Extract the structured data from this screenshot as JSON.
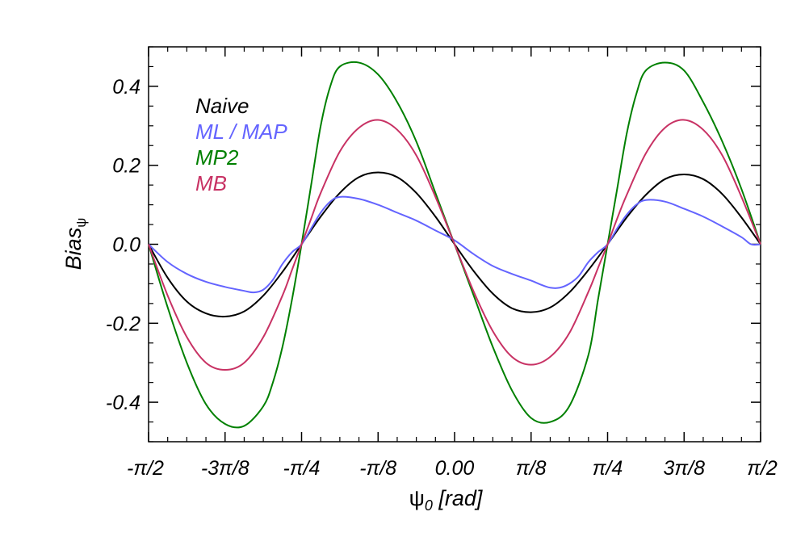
{
  "chart_data": {
    "type": "line",
    "title": "",
    "xlabel_symbol": "ψ",
    "xlabel_sub": "0",
    "xlabel_rest": " [rad]",
    "ylabel_main": "Bias",
    "ylabel_sub": "ψ",
    "xlim": [
      -1.5708,
      1.5708
    ],
    "ylim": [
      -0.5,
      0.5
    ],
    "x_ticks": [
      {
        "value": -1.5708,
        "label": "-π/2"
      },
      {
        "value": -1.1781,
        "label": "-3π/8"
      },
      {
        "value": -0.7854,
        "label": "-π/4"
      },
      {
        "value": -0.3927,
        "label": "-π/8"
      },
      {
        "value": 0.0,
        "label": "0.00"
      },
      {
        "value": 0.3927,
        "label": "π/8"
      },
      {
        "value": 0.7854,
        "label": "π/4"
      },
      {
        "value": 1.1781,
        "label": "3π/8"
      },
      {
        "value": 1.5708,
        "label": "π/2"
      }
    ],
    "y_ticks": [
      {
        "value": 0.4,
        "label": "0.4"
      },
      {
        "value": 0.2,
        "label": "0.2"
      },
      {
        "value": 0.0,
        "label": "0.0"
      },
      {
        "value": -0.2,
        "label": "-0.2"
      },
      {
        "value": -0.4,
        "label": "-0.4"
      }
    ],
    "legend_position": "top-left",
    "series": [
      {
        "name": "Naive",
        "color": "#000000",
        "x": [
          -1.5708,
          -1.4726,
          -1.3744,
          -1.2763,
          -1.1781,
          -1.0799,
          -0.9817,
          -0.8836,
          -0.7854,
          -0.6872,
          -0.589,
          -0.4909,
          -0.3927,
          -0.2945,
          -0.1963,
          -0.0982,
          0.0,
          0.0982,
          0.1963,
          0.2945,
          0.3927,
          0.4909,
          0.589,
          0.6872,
          0.7854,
          0.8836,
          0.9817,
          1.0799,
          1.1781,
          1.2763,
          1.3744,
          1.4726,
          1.5708
        ],
        "y": [
          0.0,
          -0.085,
          -0.145,
          -0.175,
          -0.183,
          -0.17,
          -0.13,
          -0.07,
          0.0,
          0.07,
          0.13,
          0.17,
          0.182,
          0.17,
          0.13,
          0.07,
          0.0,
          -0.068,
          -0.125,
          -0.162,
          -0.172,
          -0.16,
          -0.122,
          -0.065,
          0.0,
          0.068,
          0.125,
          0.165,
          0.177,
          0.165,
          0.127,
          0.068,
          0.0
        ]
      },
      {
        "name": "ML / MAP",
        "color": "#6464ff",
        "x": [
          -1.5708,
          -1.4726,
          -1.3744,
          -1.2763,
          -1.1781,
          -1.0799,
          -1.0308,
          -0.9817,
          -0.9326,
          -0.8836,
          -0.8345,
          -0.7854,
          -0.7363,
          -0.6872,
          -0.6381,
          -0.589,
          -0.4909,
          -0.3927,
          -0.2945,
          -0.1963,
          -0.0982,
          0.0,
          0.0982,
          0.1963,
          0.2945,
          0.3927,
          0.4418,
          0.4909,
          0.5399,
          0.589,
          0.6381,
          0.6872,
          0.7363,
          0.7854,
          0.8345,
          0.8836,
          0.9326,
          0.9817,
          1.0799,
          1.1781,
          1.2763,
          1.3744,
          1.4726,
          1.5217,
          1.5708
        ],
        "y": [
          0.0,
          -0.045,
          -0.075,
          -0.095,
          -0.108,
          -0.118,
          -0.122,
          -0.115,
          -0.09,
          -0.05,
          -0.02,
          0.0,
          0.04,
          0.08,
          0.108,
          0.12,
          0.115,
          0.1,
          0.08,
          0.06,
          0.035,
          0.01,
          -0.025,
          -0.055,
          -0.075,
          -0.092,
          -0.102,
          -0.11,
          -0.11,
          -0.1,
          -0.08,
          -0.045,
          -0.02,
          0.0,
          0.04,
          0.075,
          0.1,
          0.112,
          0.108,
          0.09,
          0.07,
          0.045,
          0.018,
          0.0,
          0.0
        ]
      },
      {
        "name": "MP2",
        "color": "#008000",
        "x": [
          -1.5708,
          -1.4726,
          -1.3744,
          -1.2763,
          -1.1781,
          -1.0799,
          -0.9817,
          -0.9326,
          -0.8836,
          -0.8345,
          -0.7854,
          -0.7363,
          -0.6872,
          -0.6381,
          -0.589,
          -0.4909,
          -0.3927,
          -0.2945,
          -0.1963,
          -0.0982,
          0.0,
          0.0982,
          0.1963,
          0.2945,
          0.3927,
          0.4909,
          0.589,
          0.6872,
          0.7363,
          0.7854,
          0.8345,
          0.8836,
          0.9326,
          0.9817,
          1.0799,
          1.1781,
          1.2763,
          1.3744,
          1.4726,
          1.5708
        ],
        "y": [
          0.0,
          -0.16,
          -0.3,
          -0.405,
          -0.455,
          -0.46,
          -0.41,
          -0.35,
          -0.26,
          -0.14,
          0.0,
          0.15,
          0.3,
          0.4,
          0.45,
          0.46,
          0.43,
          0.36,
          0.26,
          0.13,
          0.0,
          -0.13,
          -0.26,
          -0.37,
          -0.44,
          -0.45,
          -0.41,
          -0.28,
          -0.14,
          0.0,
          0.14,
          0.28,
          0.38,
          0.44,
          0.46,
          0.44,
          0.36,
          0.26,
          0.14,
          0.0
        ]
      },
      {
        "name": "MB",
        "color": "#c83264",
        "x": [
          -1.5708,
          -1.4726,
          -1.3744,
          -1.2763,
          -1.1781,
          -1.0799,
          -0.9817,
          -0.8836,
          -0.8345,
          -0.7854,
          -0.7363,
          -0.6872,
          -0.589,
          -0.4909,
          -0.3927,
          -0.2945,
          -0.1963,
          -0.0982,
          0.0,
          0.0982,
          0.1963,
          0.2945,
          0.3927,
          0.4909,
          0.589,
          0.6872,
          0.7363,
          0.7854,
          0.8345,
          0.8836,
          0.9817,
          1.0799,
          1.1781,
          1.2763,
          1.3744,
          1.4726,
          1.5708
        ],
        "y": [
          0.0,
          -0.13,
          -0.235,
          -0.3,
          -0.318,
          -0.3,
          -0.235,
          -0.13,
          -0.065,
          0.0,
          0.065,
          0.13,
          0.235,
          0.295,
          0.315,
          0.29,
          0.225,
          0.12,
          0.0,
          -0.12,
          -0.22,
          -0.285,
          -0.305,
          -0.285,
          -0.225,
          -0.12,
          -0.06,
          0.0,
          0.065,
          0.125,
          0.23,
          0.295,
          0.315,
          0.29,
          0.225,
          0.12,
          0.0
        ]
      }
    ]
  }
}
